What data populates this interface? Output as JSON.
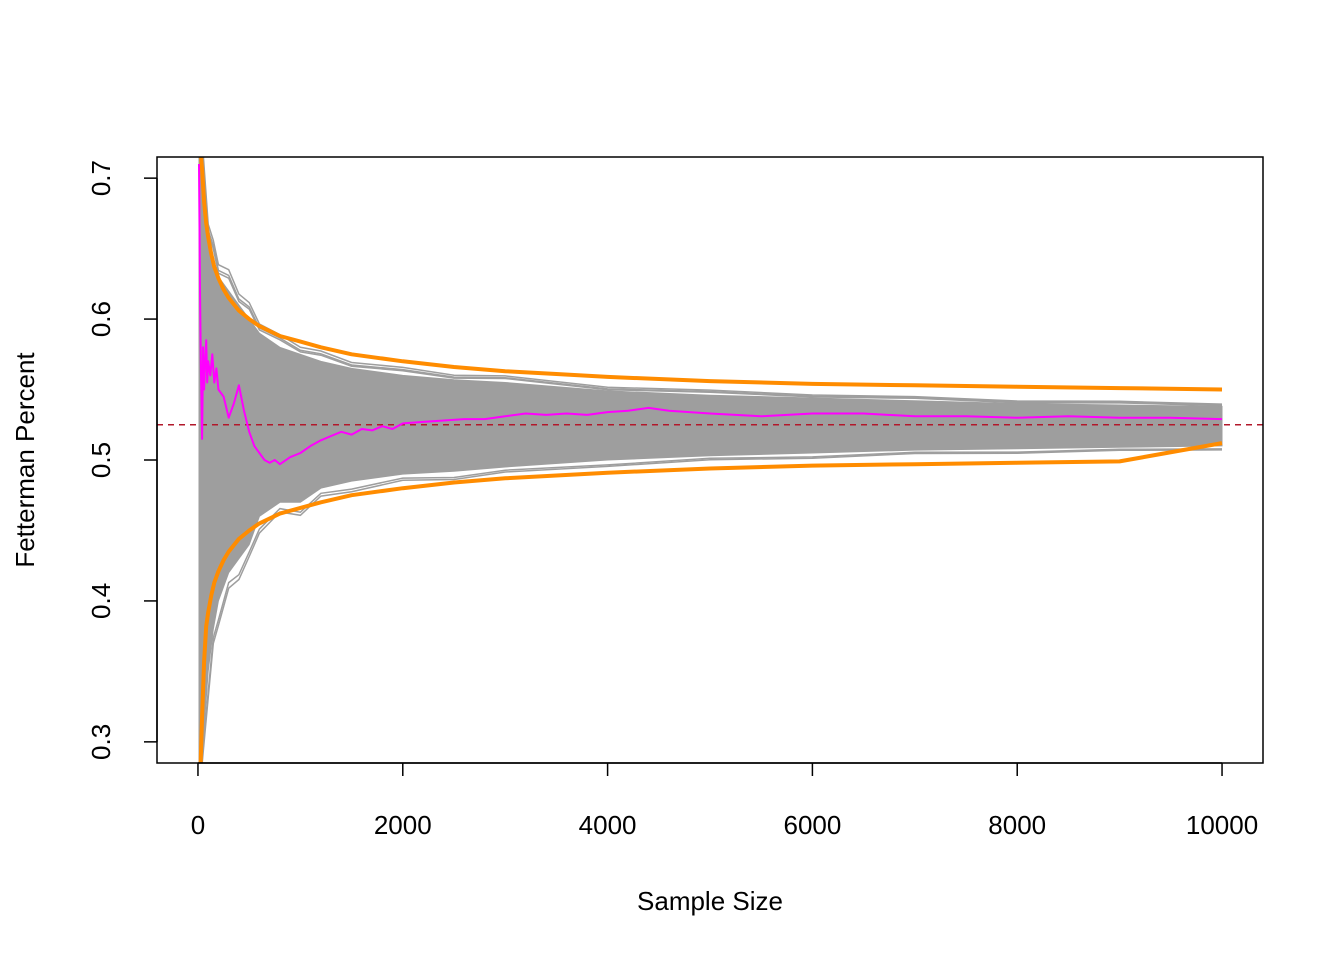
{
  "chart_data": {
    "type": "line",
    "title": "",
    "xlabel": "Sample Size",
    "ylabel": "Fetterman Percent",
    "xlim": [
      -400,
      10400
    ],
    "ylim": [
      0.285,
      0.715
    ],
    "x_ticks": [
      0,
      2000,
      4000,
      6000,
      8000,
      10000
    ],
    "x_tick_labels": [
      "0",
      "2000",
      "4000",
      "6000",
      "8000",
      "10000"
    ],
    "y_ticks": [
      0.3,
      0.4,
      0.5,
      0.6,
      0.7
    ],
    "y_tick_labels": [
      "0.3",
      "0.4",
      "0.5",
      "0.6",
      "0.7"
    ],
    "grid": false,
    "legend": "none",
    "reference_line": {
      "y": 0.525,
      "style": "dashed",
      "color": "#b2182b"
    },
    "simulation_band": {
      "color": "#9e9e9e",
      "center": 0.525,
      "x": [
        10,
        50,
        100,
        150,
        200,
        300,
        400,
        500,
        600,
        800,
        1000,
        1200,
        1500,
        2000,
        2500,
        3000,
        4000,
        5000,
        6000,
        7000,
        8000,
        9000,
        10000
      ],
      "lower": [
        0.28,
        0.3,
        0.35,
        0.38,
        0.4,
        0.42,
        0.43,
        0.44,
        0.46,
        0.47,
        0.47,
        0.48,
        0.485,
        0.49,
        0.492,
        0.495,
        0.5,
        0.503,
        0.505,
        0.507,
        0.508,
        0.509,
        0.51
      ],
      "upper": [
        0.72,
        0.7,
        0.66,
        0.64,
        0.63,
        0.62,
        0.61,
        0.6,
        0.59,
        0.58,
        0.575,
        0.57,
        0.565,
        0.56,
        0.557,
        0.555,
        0.549,
        0.546,
        0.544,
        0.542,
        0.54,
        0.539,
        0.538
      ]
    },
    "series": [
      {
        "color": "#ff8c00",
        "x": [
          25,
          40,
          60,
          80,
          100,
          130,
          160,
          200,
          250,
          300,
          400,
          500,
          600,
          800,
          1000,
          1200,
          1500,
          2000,
          2500,
          3000,
          3500,
          4000,
          5000,
          6000,
          7000,
          8000,
          9000,
          10000
        ],
        "values": [
          0.72,
          0.706,
          0.683,
          0.668,
          0.658,
          0.646,
          0.637,
          0.629,
          0.621,
          0.615,
          0.606,
          0.6,
          0.595,
          0.588,
          0.584,
          0.58,
          0.575,
          0.57,
          0.566,
          0.563,
          0.561,
          0.559,
          0.556,
          0.554,
          0.553,
          0.552,
          0.551,
          0.55
        ]
      },
      {
        "color": "#ff8c00",
        "x": [
          25,
          40,
          60,
          80,
          100,
          130,
          160,
          200,
          250,
          300,
          400,
          500,
          600,
          800,
          1000,
          1200,
          1500,
          2000,
          2500,
          3000,
          3500,
          4000,
          5000,
          6000,
          7000,
          8000,
          9000,
          10000
        ],
        "values": [
          0.282,
          0.318,
          0.357,
          0.382,
          0.392,
          0.404,
          0.413,
          0.421,
          0.429,
          0.435,
          0.444,
          0.45,
          0.455,
          0.462,
          0.466,
          0.47,
          0.475,
          0.48,
          0.484,
          0.487,
          0.489,
          0.491,
          0.494,
          0.496,
          0.497,
          0.498,
          0.499,
          0.512
        ]
      },
      {
        "color": "#ff00ff",
        "x": [
          10,
          20,
          30,
          40,
          50,
          60,
          70,
          80,
          90,
          100,
          120,
          140,
          160,
          180,
          200,
          250,
          300,
          350,
          400,
          450,
          500,
          550,
          600,
          650,
          700,
          750,
          800,
          900,
          1000,
          1100,
          1200,
          1300,
          1400,
          1500,
          1600,
          1700,
          1800,
          1900,
          2000,
          2200,
          2400,
          2600,
          2800,
          3000,
          3200,
          3400,
          3600,
          3800,
          4000,
          4200,
          4400,
          4600,
          4800,
          5000,
          5500,
          6000,
          6500,
          7000,
          7500,
          8000,
          8500,
          9000,
          9500,
          10000
        ],
        "values": [
          0.71,
          0.62,
          0.56,
          0.515,
          0.58,
          0.55,
          0.57,
          0.585,
          0.555,
          0.57,
          0.56,
          0.575,
          0.555,
          0.565,
          0.55,
          0.545,
          0.53,
          0.54,
          0.553,
          0.535,
          0.52,
          0.51,
          0.505,
          0.5,
          0.498,
          0.5,
          0.497,
          0.502,
          0.505,
          0.51,
          0.514,
          0.517,
          0.52,
          0.518,
          0.522,
          0.521,
          0.524,
          0.522,
          0.526,
          0.527,
          0.528,
          0.529,
          0.529,
          0.531,
          0.533,
          0.532,
          0.533,
          0.532,
          0.534,
          0.535,
          0.537,
          0.535,
          0.534,
          0.533,
          0.531,
          0.533,
          0.533,
          0.531,
          0.531,
          0.53,
          0.531,
          0.53,
          0.53,
          0.529
        ]
      }
    ]
  }
}
